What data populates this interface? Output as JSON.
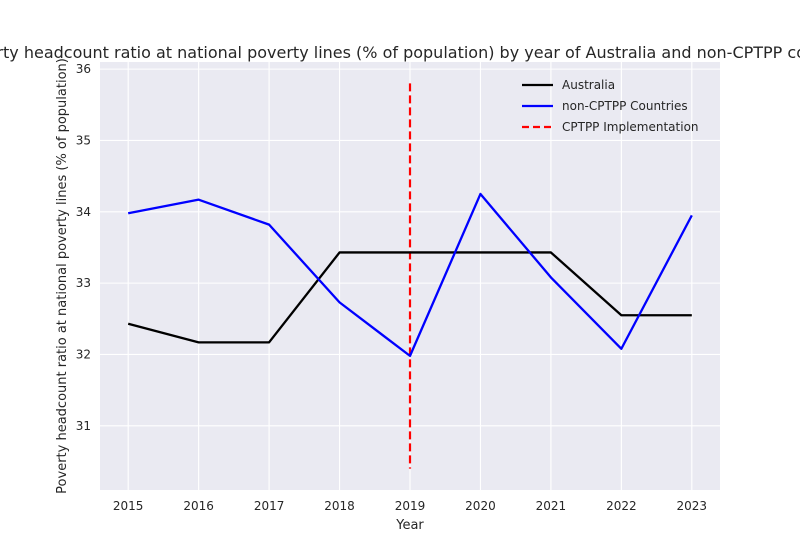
{
  "chart_data": {
    "type": "line",
    "title": "Poverty headcount ratio at national poverty lines (% of population) by year of Australia and non-CPTPP countries",
    "xlabel": "Year",
    "ylabel": "Poverty headcount ratio at national poverty lines (% of population)",
    "x": [
      2015,
      2016,
      2017,
      2018,
      2019,
      2020,
      2021,
      2022,
      2023
    ],
    "xlim": [
      2014.6,
      2023.4
    ],
    "ylim": [
      30.1,
      36.1
    ],
    "yticks": [
      31,
      32,
      33,
      34,
      35,
      36
    ],
    "grid": true,
    "legend_position": "top-right",
    "series": [
      {
        "name": "Australia",
        "color": "#000000",
        "style": "solid",
        "values": [
          32.43,
          32.17,
          32.17,
          33.43,
          33.43,
          33.43,
          33.43,
          32.55,
          32.55
        ]
      },
      {
        "name": "non-CPTPP Countries",
        "color": "#0000ff",
        "style": "solid",
        "values": [
          33.98,
          34.17,
          33.82,
          32.73,
          31.98,
          34.25,
          33.08,
          32.08,
          33.95
        ]
      }
    ],
    "annotations": [
      {
        "type": "vline",
        "x": 2019,
        "y_range": [
          30.4,
          35.8
        ],
        "color": "#ff0000",
        "style": "dashed",
        "label": "CPTPP Implementation"
      }
    ],
    "colors": {
      "background": "#eaeaf2",
      "grid": "#ffffff"
    }
  }
}
